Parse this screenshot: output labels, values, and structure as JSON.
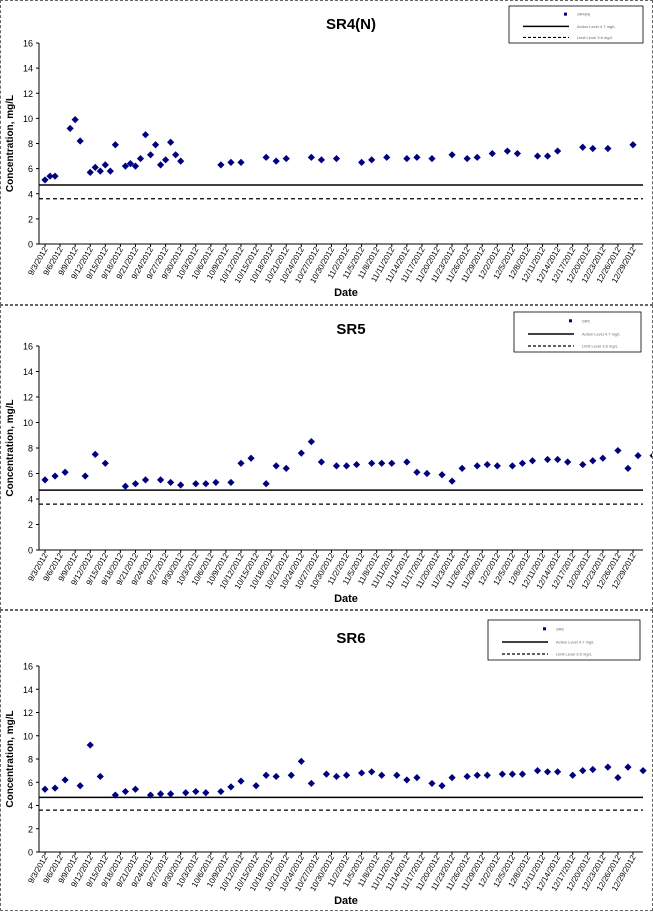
{
  "chart_data": [
    {
      "type": "scatter",
      "title": "SR4(N)",
      "xlabel": "Date",
      "ylabel": "Concentration, mg/L",
      "ylim": [
        0,
        16
      ],
      "yticks": [
        0,
        2,
        4,
        6,
        8,
        10,
        12,
        14,
        16
      ],
      "x_tick_labels": [
        "9/3/2012",
        "9/6/2012",
        "9/9/2012",
        "9/12/2012",
        "9/15/2012",
        "9/18/2012",
        "9/21/2012",
        "9/24/2012",
        "9/27/2012",
        "9/30/2012",
        "10/3/2012",
        "10/6/2012",
        "10/9/2012",
        "10/12/2012",
        "10/15/2012",
        "10/18/2012",
        "10/21/2012",
        "10/24/2012",
        "10/27/2012",
        "10/30/2012",
        "11/2/2012",
        "11/5/2012",
        "11/8/2012",
        "11/11/2012",
        "11/14/2012",
        "11/17/2012",
        "11/20/2012",
        "11/23/2012",
        "11/26/2012",
        "11/29/2012",
        "12/2/2012",
        "12/5/2012",
        "12/8/2012",
        "12/11/2012",
        "12/14/2012",
        "12/17/2012",
        "12/20/2012",
        "12/23/2012",
        "12/26/2012",
        "12/29/2012"
      ],
      "legend": {
        "position": "top-right",
        "entries": [
          "SR4(N)",
          "Action Level 4.7 mg/L",
          "Limit Level 3.6 mg/L"
        ]
      },
      "reference_lines": [
        {
          "value": 4.7,
          "style": "solid"
        },
        {
          "value": 3.6,
          "style": "dashed"
        }
      ],
      "points": [
        {
          "date": "9/3/2012",
          "value": 5.1
        },
        {
          "date": "9/4/2012",
          "value": 5.4
        },
        {
          "date": "9/5/2012",
          "value": 5.4
        },
        {
          "date": "9/8/2012",
          "value": 9.2
        },
        {
          "date": "9/9/2012",
          "value": 9.9
        },
        {
          "date": "9/10/2012",
          "value": 8.2
        },
        {
          "date": "9/12/2012",
          "value": 5.7
        },
        {
          "date": "9/13/2012",
          "value": 6.1
        },
        {
          "date": "9/14/2012",
          "value": 5.8
        },
        {
          "date": "9/15/2012",
          "value": 6.3
        },
        {
          "date": "9/16/2012",
          "value": 5.8
        },
        {
          "date": "9/17/2012",
          "value": 7.9
        },
        {
          "date": "9/19/2012",
          "value": 6.2
        },
        {
          "date": "9/20/2012",
          "value": 6.4
        },
        {
          "date": "9/21/2012",
          "value": 6.2
        },
        {
          "date": "9/22/2012",
          "value": 6.8
        },
        {
          "date": "9/23/2012",
          "value": 8.7
        },
        {
          "date": "9/24/2012",
          "value": 7.1
        },
        {
          "date": "9/25/2012",
          "value": 7.9
        },
        {
          "date": "9/26/2012",
          "value": 6.3
        },
        {
          "date": "9/27/2012",
          "value": 6.7
        },
        {
          "date": "9/28/2012",
          "value": 8.1
        },
        {
          "date": "9/29/2012",
          "value": 7.1
        },
        {
          "date": "9/30/2012",
          "value": 6.6
        },
        {
          "date": "10/8/2012",
          "value": 6.3
        },
        {
          "date": "10/10/2012",
          "value": 6.5
        },
        {
          "date": "10/12/2012",
          "value": 6.5
        },
        {
          "date": "10/17/2012",
          "value": 6.9
        },
        {
          "date": "10/19/2012",
          "value": 6.6
        },
        {
          "date": "10/21/2012",
          "value": 6.8
        },
        {
          "date": "10/26/2012",
          "value": 6.9
        },
        {
          "date": "10/28/2012",
          "value": 6.7
        },
        {
          "date": "10/31/2012",
          "value": 6.8
        },
        {
          "date": "11/5/2012",
          "value": 6.5
        },
        {
          "date": "11/7/2012",
          "value": 6.7
        },
        {
          "date": "11/10/2012",
          "value": 6.9
        },
        {
          "date": "11/14/2012",
          "value": 6.8
        },
        {
          "date": "11/16/2012",
          "value": 6.9
        },
        {
          "date": "11/19/2012",
          "value": 6.8
        },
        {
          "date": "11/23/2012",
          "value": 7.1
        },
        {
          "date": "11/26/2012",
          "value": 6.8
        },
        {
          "date": "11/28/2012",
          "value": 6.9
        },
        {
          "date": "12/1/2012",
          "value": 7.2
        },
        {
          "date": "12/4/2012",
          "value": 7.4
        },
        {
          "date": "12/6/2012",
          "value": 7.2
        },
        {
          "date": "12/10/2012",
          "value": 7.0
        },
        {
          "date": "12/12/2012",
          "value": 7.0
        },
        {
          "date": "12/14/2012",
          "value": 7.4
        },
        {
          "date": "12/19/2012",
          "value": 7.7
        },
        {
          "date": "12/21/2012",
          "value": 7.6
        },
        {
          "date": "12/24/2012",
          "value": 7.6
        },
        {
          "date": "12/29/2012",
          "value": 7.9
        }
      ]
    },
    {
      "type": "scatter",
      "title": "SR5",
      "xlabel": "Date",
      "ylabel": "Concentration, mg/L",
      "ylim": [
        0,
        16
      ],
      "yticks": [
        0,
        2,
        4,
        6,
        8,
        10,
        12,
        14,
        16
      ],
      "x_tick_labels": [
        "9/3/2012",
        "9/6/2012",
        "9/9/2012",
        "9/12/2012",
        "9/15/2012",
        "9/18/2012",
        "9/21/2012",
        "9/24/2012",
        "9/27/2012",
        "9/30/2012",
        "10/3/2012",
        "10/6/2012",
        "10/9/2012",
        "10/12/2012",
        "10/15/2012",
        "10/18/2012",
        "10/21/2012",
        "10/24/2012",
        "10/27/2012",
        "10/30/2012",
        "11/2/2012",
        "11/5/2012",
        "11/8/2012",
        "11/11/2012",
        "11/14/2012",
        "11/17/2012",
        "11/20/2012",
        "11/23/2012",
        "11/26/2012",
        "11/29/2012",
        "12/2/2012",
        "12/5/2012",
        "12/8/2012",
        "12/11/2012",
        "12/14/2012",
        "12/17/2012",
        "12/20/2012",
        "12/23/2012",
        "12/26/2012",
        "12/29/2012"
      ],
      "legend": {
        "position": "top-right",
        "entries": [
          "SR5",
          "Action Level 4.7 mg/L",
          "Limit Level 3.6 mg/L"
        ]
      },
      "reference_lines": [
        {
          "value": 4.7,
          "style": "solid"
        },
        {
          "value": 3.6,
          "style": "dashed"
        }
      ],
      "points": [
        {
          "date": "9/3/2012",
          "value": 5.5
        },
        {
          "date": "9/5/2012",
          "value": 5.8
        },
        {
          "date": "9/7/2012",
          "value": 6.1
        },
        {
          "date": "9/11/2012",
          "value": 5.8
        },
        {
          "date": "9/13/2012",
          "value": 7.5
        },
        {
          "date": "9/15/2012",
          "value": 6.8
        },
        {
          "date": "9/19/2012",
          "value": 5.0
        },
        {
          "date": "9/21/2012",
          "value": 5.2
        },
        {
          "date": "9/23/2012",
          "value": 5.5
        },
        {
          "date": "9/26/2012",
          "value": 5.5
        },
        {
          "date": "9/28/2012",
          "value": 5.3
        },
        {
          "date": "9/30/2012",
          "value": 5.1
        },
        {
          "date": "10/3/2012",
          "value": 5.2
        },
        {
          "date": "10/5/2012",
          "value": 5.2
        },
        {
          "date": "10/7/2012",
          "value": 5.3
        },
        {
          "date": "10/10/2012",
          "value": 5.3
        },
        {
          "date": "10/12/2012",
          "value": 6.8
        },
        {
          "date": "10/14/2012",
          "value": 7.2
        },
        {
          "date": "10/17/2012",
          "value": 5.2
        },
        {
          "date": "10/19/2012",
          "value": 6.6
        },
        {
          "date": "10/21/2012",
          "value": 6.4
        },
        {
          "date": "10/24/2012",
          "value": 7.6
        },
        {
          "date": "10/26/2012",
          "value": 8.5
        },
        {
          "date": "10/28/2012",
          "value": 6.9
        },
        {
          "date": "10/31/2012",
          "value": 6.6
        },
        {
          "date": "11/2/2012",
          "value": 6.6
        },
        {
          "date": "11/4/2012",
          "value": 6.7
        },
        {
          "date": "11/7/2012",
          "value": 6.8
        },
        {
          "date": "11/9/2012",
          "value": 6.8
        },
        {
          "date": "11/11/2012",
          "value": 6.8
        },
        {
          "date": "11/14/2012",
          "value": 6.9
        },
        {
          "date": "11/16/2012",
          "value": 6.1
        },
        {
          "date": "11/18/2012",
          "value": 6.0
        },
        {
          "date": "11/21/2012",
          "value": 5.9
        },
        {
          "date": "11/23/2012",
          "value": 5.4
        },
        {
          "date": "11/25/2012",
          "value": 6.4
        },
        {
          "date": "11/28/2012",
          "value": 6.6
        },
        {
          "date": "11/30/2012",
          "value": 6.7
        },
        {
          "date": "12/2/2012",
          "value": 6.6
        },
        {
          "date": "12/5/2012",
          "value": 6.6
        },
        {
          "date": "12/7/2012",
          "value": 6.8
        },
        {
          "date": "12/9/2012",
          "value": 7.0
        },
        {
          "date": "12/12/2012",
          "value": 7.1
        },
        {
          "date": "12/14/2012",
          "value": 7.1
        },
        {
          "date": "12/16/2012",
          "value": 6.9
        },
        {
          "date": "12/19/2012",
          "value": 6.7
        },
        {
          "date": "12/21/2012",
          "value": 7.0
        },
        {
          "date": "12/23/2012",
          "value": 7.2
        },
        {
          "date": "12/26/2012",
          "value": 7.8
        },
        {
          "date": "12/28/2012",
          "value": 6.4
        },
        {
          "date": "12/30/2012",
          "value": 7.4
        },
        {
          "date": "1/2/2013",
          "value": 7.4
        }
      ]
    },
    {
      "type": "scatter",
      "title": "SR6",
      "xlabel": "Date",
      "ylabel": "Concentration, mg/L",
      "ylim": [
        0,
        16
      ],
      "yticks": [
        0,
        2,
        4,
        6,
        8,
        10,
        12,
        14,
        16
      ],
      "x_tick_labels": [
        "9/3/2012",
        "9/6/2012",
        "9/9/2012",
        "9/12/2012",
        "9/15/2012",
        "9/18/2012",
        "9/21/2012",
        "9/24/2012",
        "9/27/2012",
        "9/30/2012",
        "10/3/2012",
        "10/6/2012",
        "10/9/2012",
        "10/12/2012",
        "10/15/2012",
        "10/18/2012",
        "10/21/2012",
        "10/24/2012",
        "10/27/2012",
        "10/30/2012",
        "11/2/2012",
        "11/5/2012",
        "11/8/2012",
        "11/11/2012",
        "11/14/2012",
        "11/17/2012",
        "11/20/2012",
        "11/23/2012",
        "11/26/2012",
        "11/29/2012",
        "12/2/2012",
        "12/5/2012",
        "12/8/2012",
        "12/11/2012",
        "12/14/2012",
        "12/17/2012",
        "12/20/2012",
        "12/23/2012",
        "12/26/2012",
        "12/29/2012"
      ],
      "legend": {
        "position": "top-right",
        "entries": [
          "SR6",
          "Action Level 4.7 mg/L",
          "Limit Level 3.6 mg/L"
        ]
      },
      "reference_lines": [
        {
          "value": 4.7,
          "style": "solid"
        },
        {
          "value": 3.6,
          "style": "dashed"
        }
      ],
      "points": [
        {
          "date": "9/3/2012",
          "value": 5.4
        },
        {
          "date": "9/5/2012",
          "value": 5.5
        },
        {
          "date": "9/7/2012",
          "value": 6.2
        },
        {
          "date": "9/10/2012",
          "value": 5.7
        },
        {
          "date": "9/12/2012",
          "value": 9.2
        },
        {
          "date": "9/14/2012",
          "value": 6.5
        },
        {
          "date": "9/17/2012",
          "value": 4.9
        },
        {
          "date": "9/19/2012",
          "value": 5.2
        },
        {
          "date": "9/21/2012",
          "value": 5.4
        },
        {
          "date": "9/24/2012",
          "value": 4.9
        },
        {
          "date": "9/26/2012",
          "value": 5.0
        },
        {
          "date": "9/28/2012",
          "value": 5.0
        },
        {
          "date": "10/1/2012",
          "value": 5.1
        },
        {
          "date": "10/3/2012",
          "value": 5.2
        },
        {
          "date": "10/5/2012",
          "value": 5.1
        },
        {
          "date": "10/8/2012",
          "value": 5.2
        },
        {
          "date": "10/10/2012",
          "value": 5.6
        },
        {
          "date": "10/12/2012",
          "value": 6.1
        },
        {
          "date": "10/15/2012",
          "value": 5.7
        },
        {
          "date": "10/17/2012",
          "value": 6.6
        },
        {
          "date": "10/19/2012",
          "value": 6.5
        },
        {
          "date": "10/22/2012",
          "value": 6.6
        },
        {
          "date": "10/24/2012",
          "value": 7.8
        },
        {
          "date": "10/26/2012",
          "value": 5.9
        },
        {
          "date": "10/29/2012",
          "value": 6.7
        },
        {
          "date": "10/31/2012",
          "value": 6.5
        },
        {
          "date": "11/2/2012",
          "value": 6.6
        },
        {
          "date": "11/5/2012",
          "value": 6.8
        },
        {
          "date": "11/7/2012",
          "value": 6.9
        },
        {
          "date": "11/9/2012",
          "value": 6.6
        },
        {
          "date": "11/12/2012",
          "value": 6.6
        },
        {
          "date": "11/14/2012",
          "value": 6.2
        },
        {
          "date": "11/16/2012",
          "value": 6.4
        },
        {
          "date": "11/19/2012",
          "value": 5.9
        },
        {
          "date": "11/21/2012",
          "value": 5.7
        },
        {
          "date": "11/23/2012",
          "value": 6.4
        },
        {
          "date": "11/26/2012",
          "value": 6.5
        },
        {
          "date": "11/28/2012",
          "value": 6.6
        },
        {
          "date": "11/30/2012",
          "value": 6.6
        },
        {
          "date": "12/3/2012",
          "value": 6.7
        },
        {
          "date": "12/5/2012",
          "value": 6.7
        },
        {
          "date": "12/7/2012",
          "value": 6.7
        },
        {
          "date": "12/10/2012",
          "value": 7.0
        },
        {
          "date": "12/12/2012",
          "value": 6.9
        },
        {
          "date": "12/14/2012",
          "value": 6.9
        },
        {
          "date": "12/17/2012",
          "value": 6.6
        },
        {
          "date": "12/19/2012",
          "value": 7.0
        },
        {
          "date": "12/21/2012",
          "value": 7.1
        },
        {
          "date": "12/24/2012",
          "value": 7.3
        },
        {
          "date": "12/26/2012",
          "value": 6.4
        },
        {
          "date": "12/28/2012",
          "value": 7.3
        },
        {
          "date": "12/31/2012",
          "value": 7.0
        }
      ]
    }
  ],
  "colors": {
    "marker": "#000080",
    "reference_line": "#000000",
    "axis": "#000000",
    "text": "#000000"
  }
}
